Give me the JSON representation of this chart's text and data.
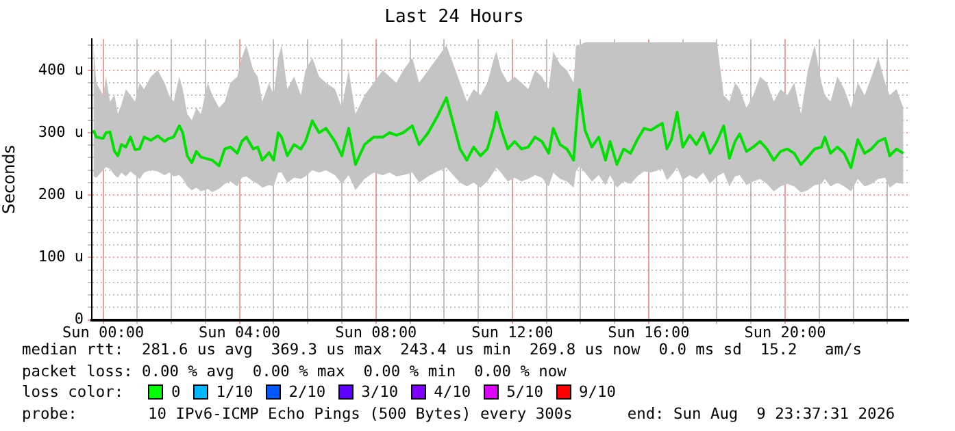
{
  "chart_data": {
    "type": "line",
    "title": "Last 24 Hours",
    "ylabel": "Seconds",
    "xlim": [
      "2026-08-08T23:40",
      "2026-08-09T23:37"
    ],
    "xticks": [
      {
        "value": "2026-08-09T00:00",
        "label": "Sun 00:00"
      },
      {
        "value": "2026-08-09T01:00",
        "label": null
      },
      {
        "value": "2026-08-09T02:00",
        "label": null
      },
      {
        "value": "2026-08-09T03:00",
        "label": null
      },
      {
        "value": "2026-08-09T04:00",
        "label": "Sun 04:00"
      },
      {
        "value": "2026-08-09T05:00",
        "label": null
      },
      {
        "value": "2026-08-09T06:00",
        "label": null
      },
      {
        "value": "2026-08-09T07:00",
        "label": null
      },
      {
        "value": "2026-08-09T08:00",
        "label": "Sun 08:00"
      },
      {
        "value": "2026-08-09T09:00",
        "label": null
      },
      {
        "value": "2026-08-09T10:00",
        "label": null
      },
      {
        "value": "2026-08-09T11:00",
        "label": null
      },
      {
        "value": "2026-08-09T12:00",
        "label": "Sun 12:00"
      },
      {
        "value": "2026-08-09T13:00",
        "label": null
      },
      {
        "value": "2026-08-09T14:00",
        "label": null
      },
      {
        "value": "2026-08-09T15:00",
        "label": null
      },
      {
        "value": "2026-08-09T16:00",
        "label": "Sun 16:00"
      },
      {
        "value": "2026-08-09T17:00",
        "label": null
      },
      {
        "value": "2026-08-09T18:00",
        "label": null
      },
      {
        "value": "2026-08-09T19:00",
        "label": null
      },
      {
        "value": "2026-08-09T20:00",
        "label": "Sun 20:00"
      },
      {
        "value": "2026-08-09T21:00",
        "label": null
      },
      {
        "value": "2026-08-09T22:00",
        "label": null
      },
      {
        "value": "2026-08-09T23:00",
        "label": null
      }
    ],
    "ylim": [
      0,
      450
    ],
    "yticks": [
      0,
      {
        "value": 20,
        "label": null
      },
      {
        "value": 40,
        "label": null
      },
      {
        "value": 60,
        "label": null
      },
      {
        "value": 80,
        "label": null
      },
      {
        "value": 100,
        "label": "100 u"
      },
      {
        "value": 120,
        "label": null
      },
      {
        "value": 140,
        "label": null
      },
      {
        "value": 160,
        "label": null
      },
      {
        "value": 180,
        "label": null
      },
      {
        "value": 200,
        "label": "200 u"
      },
      {
        "value": 220,
        "label": null
      },
      {
        "value": 240,
        "label": null
      },
      {
        "value": 260,
        "label": null
      },
      {
        "value": 280,
        "label": null
      },
      {
        "value": 300,
        "label": "300 u"
      },
      {
        "value": 320,
        "label": null
      },
      {
        "value": 340,
        "label": null
      },
      {
        "value": 360,
        "label": null
      },
      {
        "value": 380,
        "label": null
      },
      {
        "value": 400,
        "label": "400 u"
      },
      {
        "value": 420,
        "label": null
      },
      {
        "value": 440,
        "label": null
      }
    ],
    "grid": true,
    "legend": false,
    "marker": "none",
    "line_style": "solid",
    "series": [
      {
        "color": "#00e000",
        "x": [
          "2026-08-08T23:43",
          "2026-08-08T23:48",
          "2026-08-09T00:00",
          "2026-08-09T00:05",
          "2026-08-09T00:12",
          "2026-08-09T00:20",
          "2026-08-09T00:26",
          "2026-08-09T00:32",
          "2026-08-09T00:40",
          "2026-08-09T00:48",
          "2026-08-09T00:56",
          "2026-08-09T01:04",
          "2026-08-09T01:12",
          "2026-08-09T01:24",
          "2026-08-09T01:36",
          "2026-08-09T01:48",
          "2026-08-09T01:56",
          "2026-08-09T02:04",
          "2026-08-09T02:14",
          "2026-08-09T02:20",
          "2026-08-09T02:28",
          "2026-08-09T02:36",
          "2026-08-09T02:44",
          "2026-08-09T02:52",
          "2026-08-09T03:04",
          "2026-08-09T03:12",
          "2026-08-09T03:24",
          "2026-08-09T03:34",
          "2026-08-09T03:44",
          "2026-08-09T03:56",
          "2026-08-09T04:04",
          "2026-08-09T04:12",
          "2026-08-09T04:24",
          "2026-08-09T04:32",
          "2026-08-09T04:40",
          "2026-08-09T04:52",
          "2026-08-09T05:00",
          "2026-08-09T05:08",
          "2026-08-09T05:14",
          "2026-08-09T05:24",
          "2026-08-09T05:36",
          "2026-08-09T05:48",
          "2026-08-09T05:56",
          "2026-08-09T06:08",
          "2026-08-09T06:20",
          "2026-08-09T06:32",
          "2026-08-09T06:48",
          "2026-08-09T07:00",
          "2026-08-09T07:12",
          "2026-08-09T07:24",
          "2026-08-09T07:40",
          "2026-08-09T07:56",
          "2026-08-09T08:12",
          "2026-08-09T08:24",
          "2026-08-09T08:36",
          "2026-08-09T08:48",
          "2026-08-09T09:04",
          "2026-08-09T09:16",
          "2026-08-09T09:32",
          "2026-08-09T09:48",
          "2026-08-09T10:04",
          "2026-08-09T10:16",
          "2026-08-09T10:28",
          "2026-08-09T10:40",
          "2026-08-09T10:52",
          "2026-08-09T11:04",
          "2026-08-09T11:16",
          "2026-08-09T11:28",
          "2026-08-09T11:32",
          "2026-08-09T11:40",
          "2026-08-09T11:52",
          "2026-08-09T12:04",
          "2026-08-09T12:16",
          "2026-08-09T12:28",
          "2026-08-09T12:40",
          "2026-08-09T12:52",
          "2026-08-09T13:04",
          "2026-08-09T13:12",
          "2026-08-09T13:24",
          "2026-08-09T13:36",
          "2026-08-09T13:48",
          "2026-08-09T13:52",
          "2026-08-09T13:58",
          "2026-08-09T14:08",
          "2026-08-09T14:20",
          "2026-08-09T14:32",
          "2026-08-09T14:44",
          "2026-08-09T14:52",
          "2026-08-09T15:04",
          "2026-08-09T15:16",
          "2026-08-09T15:28",
          "2026-08-09T15:40",
          "2026-08-09T15:52",
          "2026-08-09T16:04",
          "2026-08-09T16:16",
          "2026-08-09T16:24",
          "2026-08-09T16:32",
          "2026-08-09T16:40",
          "2026-08-09T16:50",
          "2026-08-09T17:00",
          "2026-08-09T17:12",
          "2026-08-09T17:24",
          "2026-08-09T17:36",
          "2026-08-09T17:48",
          "2026-08-09T18:00",
          "2026-08-09T18:12",
          "2026-08-09T18:22",
          "2026-08-09T18:32",
          "2026-08-09T18:40",
          "2026-08-09T18:52",
          "2026-08-09T19:04",
          "2026-08-09T19:16",
          "2026-08-09T19:28",
          "2026-08-09T19:40",
          "2026-08-09T19:52",
          "2026-08-09T20:04",
          "2026-08-09T20:16",
          "2026-08-09T20:28",
          "2026-08-09T20:40",
          "2026-08-09T20:52",
          "2026-08-09T21:04",
          "2026-08-09T21:10",
          "2026-08-09T21:20",
          "2026-08-09T21:32",
          "2026-08-09T21:44",
          "2026-08-09T21:56",
          "2026-08-09T22:08",
          "2026-08-09T22:20",
          "2026-08-09T22:32",
          "2026-08-09T22:44",
          "2026-08-09T22:56",
          "2026-08-09T23:04",
          "2026-08-09T23:16",
          "2026-08-09T23:28"
        ],
        "values": [
          304,
          293,
          291,
          300,
          301,
          270,
          263,
          281,
          277,
          293,
          273,
          274,
          293,
          288,
          295,
          286,
          291,
          293,
          311,
          300,
          263,
          252,
          270,
          261,
          258,
          256,
          247,
          274,
          277,
          267,
          286,
          293,
          274,
          277,
          256,
          268,
          256,
          300,
          293,
          263,
          281,
          274,
          286,
          319,
          300,
          307,
          286,
          263,
          307,
          249,
          281,
          293,
          293,
          300,
          296,
          300,
          311,
          281,
          300,
          326,
          356,
          315,
          274,
          256,
          277,
          263,
          274,
          311,
          333,
          307,
          274,
          286,
          274,
          277,
          293,
          286,
          267,
          307,
          281,
          274,
          256,
          304,
          369,
          304,
          277,
          293,
          256,
          286,
          249,
          274,
          267,
          289,
          307,
          304,
          311,
          315,
          274,
          289,
          333,
          277,
          296,
          281,
          300,
          267,
          286,
          311,
          259,
          286,
          298,
          270,
          277,
          286,
          274,
          256,
          270,
          274,
          267,
          249,
          261,
          274,
          277,
          293,
          267,
          277,
          267,
          244,
          289,
          267,
          274,
          286,
          291,
          263,
          274,
          267
        ],
        "lower": [
          230,
          228,
          240,
          245,
          242,
          232,
          228,
          236,
          230,
          238,
          232,
          226,
          236,
          240,
          238,
          232,
          236,
          230,
          232,
          226,
          214,
          208,
          212,
          206,
          210,
          205,
          210,
          218,
          222,
          214,
          228,
          230,
          222,
          218,
          212,
          216,
          214,
          236,
          236,
          220,
          228,
          226,
          230,
          240,
          236,
          240,
          232,
          218,
          232,
          208,
          226,
          236,
          232,
          236,
          230,
          232,
          236,
          220,
          230,
          238,
          244,
          232,
          220,
          214,
          220,
          212,
          222,
          238,
          244,
          236,
          222,
          228,
          222,
          226,
          232,
          228,
          214,
          236,
          226,
          222,
          212,
          238,
          246,
          236,
          222,
          232,
          216,
          232,
          212,
          222,
          218,
          230,
          238,
          236,
          240,
          242,
          224,
          232,
          244,
          224,
          232,
          226,
          236,
          218,
          230,
          236,
          214,
          230,
          232,
          216,
          222,
          226,
          218,
          206,
          214,
          218,
          214,
          204,
          208,
          216,
          218,
          226,
          214,
          220,
          214,
          206,
          226,
          214,
          218,
          226,
          228,
          212,
          220,
          218
        ],
        "upper": [
          440,
          380,
          360,
          390,
          350,
          360,
          330,
          345,
          370,
          360,
          350,
          380,
          370,
          390,
          400,
          380,
          360,
          350,
          390,
          370,
          330,
          320,
          340,
          330,
          380,
          360,
          340,
          350,
          380,
          390,
          420,
          440,
          400,
          390,
          350,
          380,
          360,
          420,
          440,
          370,
          390,
          360,
          400,
          420,
          390,
          380,
          370,
          340,
          400,
          330,
          360,
          380,
          400,
          390,
          380,
          400,
          420,
          380,
          400,
          420,
          440,
          410,
          380,
          350,
          370,
          360,
          380,
          420,
          430,
          400,
          380,
          390,
          380,
          370,
          400,
          390,
          370,
          430,
          410,
          400,
          380,
          440,
          440,
          445,
          445,
          445,
          445,
          445,
          445,
          445,
          445,
          445,
          445,
          445,
          445,
          445,
          445,
          445,
          445,
          445,
          445,
          445,
          445,
          445,
          445,
          360,
          350,
          380,
          370,
          340,
          360,
          390,
          380,
          350,
          370,
          360,
          380,
          330,
          400,
          440,
          380,
          360,
          350,
          390,
          370,
          340,
          380,
          360,
          390,
          420,
          380,
          360,
          370,
          340
        ]
      }
    ],
    "annotations": [
      "median rtt:  281.6 us avg  369.3 us max  243.4 us min  269.8 us now  0.0 ms sd  15.2   am/s",
      "packet loss: 0.00 % avg  0.00 % max  0.00 % min  0.00 % now",
      "loss color:",
      "0",
      "1/10",
      "2/10",
      "3/10",
      "4/10",
      "5/10",
      "9/10",
      "probe:",
      "10 IPv6-ICMP Echo Pings (500 Bytes) every 300s",
      "end: Sun Aug  9 23:37:31 2026"
    ]
  }
}
